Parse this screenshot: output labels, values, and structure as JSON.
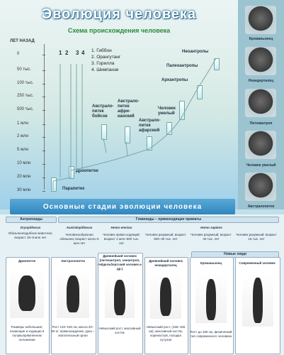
{
  "header": {
    "title": "Эволюция человека",
    "subtitle": "Схема происхождения человека"
  },
  "scale": {
    "label": "ЛЕТ НАЗАД",
    "ticks": [
      "0",
      "50 тыс.",
      "100 тыс.",
      "250 тыс.",
      "500 тыс.",
      "1 млн",
      "2 млн",
      "5 млн",
      "10 млн",
      "20 млн",
      "30 млн"
    ]
  },
  "legend": {
    "numbers": [
      "1",
      "2",
      "3",
      "4"
    ],
    "items": [
      "1. Гиббон",
      "2. Орангутанг",
      "3. Горилла",
      "4. Шимпанзе"
    ]
  },
  "tree_labels": {
    "neoanthropes": "Неоантропы",
    "paleoanthropes": "Палеоантропы",
    "archanthropes": "Архантропы",
    "homo_habilis": "Человек умелый",
    "australopithecus_boisei": "Австрало-питек бойсов",
    "australopithecus_africanus": "Австрало-питек афри-канский",
    "australopithecus_afarensis": "Австрало-питек афарский",
    "dryopithecus": "Дриопитек",
    "parapithecus": "Парапитек"
  },
  "portraits": [
    "Кроманьонец",
    "Неандерталец",
    "Питекантроп",
    "Человек умелый",
    "Австралопитек"
  ],
  "banner": "Основные стадии эволюции человека",
  "stages": {
    "anthropoids": "Антропоиды",
    "hominids": "Гоминиды – прямоходящие приматы",
    "modern": "Новые люди",
    "dryopithecus_title": "Dryopithecus",
    "dryopithecus_text": "Обезьяноподобное животное; возраст 18–9 млн лет",
    "australopithecus_title": "Australopithecus",
    "australopithecus_text": "Человекообразная обезьяна; возраст около 5 млн лет",
    "homo_erectus_title": "Homo erectus",
    "homo_erectus_text": "Человек прямо-ходящий; возраст 2 млн–500 тыс. лет",
    "homo_sapiens_title": "Homo sapiens",
    "sapiens_1": "Человек разумный; возраст 500–30 тыс. лет",
    "sapiens_2": "Человек разумный; возраст 40 тыс. лет",
    "sapiens_3": "Человек разумный; возраст 15 тыс. лет",
    "card_1_title": "Дриопитек",
    "card_2_title": "Австралопитек",
    "card_3_title": "Древнейший человек (питекантроп, синантроп, гейдельбергский человек и др.)",
    "card_4_title": "Древнейший человек неандерталец",
    "card_5_title": "Кроманьонец",
    "card_6_title": "Современный человек",
    "card_1_note": "Размеры небольшие; лазающие и ходящие в полувыпрямленном положении",
    "card_2_note": "Рост 120–150 см, масса 20–50 кг; прямохождение, рука – хватательный орган",
    "card_3_note": "Невысокий рост, массивный костяк",
    "card_4_note": "Невысокий рост, (155–165 см), массивный костяк, коренастый, походка сутулая",
    "card_5_note": "Рост до 180 см, физический тип современного человека",
    "card_6_note": ""
  }
}
